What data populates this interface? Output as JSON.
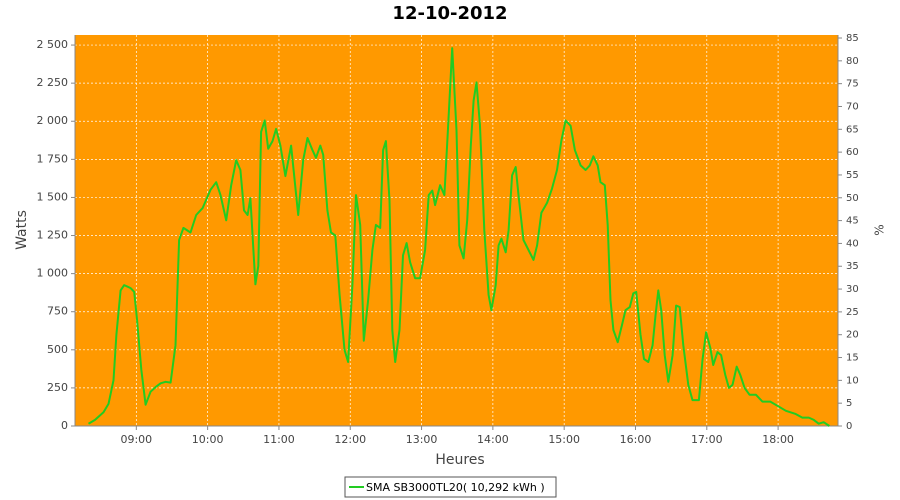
{
  "chart_data": {
    "type": "line",
    "title": "12-10-2012",
    "xlabel": "Heures",
    "ylabel": "Watts",
    "y2label": "%",
    "x": [
      8.33,
      8.42,
      8.54,
      8.61,
      8.68,
      8.72,
      8.78,
      8.83,
      8.92,
      8.97,
      9.01,
      9.07,
      9.13,
      9.2,
      9.27,
      9.34,
      9.41,
      9.48,
      9.55,
      9.6,
      9.66,
      9.76,
      9.84,
      9.93,
      10.04,
      10.12,
      10.18,
      10.26,
      10.33,
      10.4,
      10.46,
      10.51,
      10.56,
      10.6,
      10.67,
      10.71,
      10.75,
      10.8,
      10.85,
      10.91,
      10.96,
      11.02,
      11.09,
      11.17,
      11.27,
      11.34,
      11.4,
      11.47,
      11.52,
      11.58,
      11.62,
      11.68,
      11.73,
      11.79,
      11.85,
      11.92,
      11.97,
      12.03,
      12.08,
      12.14,
      12.19,
      12.25,
      12.31,
      12.36,
      12.42,
      12.46,
      12.5,
      12.55,
      12.59,
      12.63,
      12.69,
      12.74,
      12.79,
      12.84,
      12.91,
      12.98,
      13.05,
      13.1,
      13.15,
      13.19,
      13.26,
      13.32,
      13.37,
      13.43,
      13.49,
      13.53,
      13.59,
      13.64,
      13.69,
      13.73,
      13.77,
      13.82,
      13.88,
      13.94,
      13.98,
      14.04,
      14.08,
      14.12,
      14.18,
      14.22,
      14.27,
      14.32,
      14.36,
      14.43,
      14.5,
      14.57,
      14.62,
      14.68,
      14.76,
      14.83,
      14.9,
      14.96,
      15.02,
      15.09,
      15.15,
      15.23,
      15.3,
      15.36,
      15.41,
      15.47,
      15.51,
      15.57,
      15.61,
      15.65,
      15.69,
      15.75,
      15.81,
      15.86,
      15.92,
      15.97,
      16.01,
      16.07,
      16.12,
      16.18,
      16.24,
      16.28,
      16.32,
      16.36,
      16.41,
      16.46,
      16.52,
      16.57,
      16.62,
      16.67,
      16.74,
      16.8,
      16.89,
      16.94,
      16.99,
      17.05,
      17.09,
      17.15,
      17.2,
      17.26,
      17.31,
      17.36,
      17.42,
      17.47,
      17.53,
      17.6,
      17.69,
      17.78,
      17.89,
      18.0,
      18.11,
      18.24,
      18.34,
      18.43,
      18.5,
      18.57,
      18.64,
      18.72
    ],
    "series": [
      {
        "name": "SMA SB3000TL20( 10,292 kWh )",
        "color": "#22cc22",
        "values": [
          15,
          40,
          90,
          145,
          300,
          600,
          890,
          925,
          905,
          880,
          700,
          370,
          140,
          225,
          255,
          280,
          290,
          285,
          530,
          1220,
          1300,
          1270,
          1385,
          1430,
          1550,
          1600,
          1515,
          1350,
          1580,
          1745,
          1680,
          1415,
          1385,
          1495,
          930,
          1050,
          1930,
          2005,
          1820,
          1870,
          1950,
          1840,
          1640,
          1840,
          1385,
          1745,
          1890,
          1810,
          1760,
          1840,
          1780,
          1415,
          1270,
          1250,
          860,
          500,
          420,
          925,
          1515,
          1320,
          560,
          825,
          1155,
          1320,
          1300,
          1810,
          1870,
          1480,
          630,
          420,
          630,
          1120,
          1200,
          1075,
          970,
          970,
          1155,
          1515,
          1545,
          1450,
          1580,
          1515,
          1940,
          2480,
          1940,
          1185,
          1100,
          1350,
          1840,
          2135,
          2255,
          1970,
          1285,
          860,
          760,
          925,
          1185,
          1230,
          1140,
          1285,
          1645,
          1700,
          1515,
          1220,
          1155,
          1090,
          1185,
          1400,
          1465,
          1560,
          1680,
          1870,
          2005,
          1970,
          1810,
          1710,
          1680,
          1710,
          1770,
          1710,
          1600,
          1580,
          1320,
          825,
          630,
          550,
          660,
          760,
          780,
          870,
          880,
          600,
          440,
          420,
          530,
          725,
          890,
          760,
          465,
          290,
          465,
          790,
          780,
          530,
          270,
          170,
          170,
          435,
          615,
          510,
          400,
          485,
          465,
          335,
          250,
          270,
          390,
          335,
          250,
          205,
          205,
          160,
          160,
          130,
          100,
          80,
          55,
          55,
          40,
          15,
          25,
          0
        ]
      }
    ],
    "xlim": [
      8.14,
      18.84
    ],
    "xticks": [
      {
        "value": 9,
        "label": "09:00"
      },
      {
        "value": 10,
        "label": "10:00"
      },
      {
        "value": 11,
        "label": "11:00"
      },
      {
        "value": 12,
        "label": "12:00"
      },
      {
        "value": 13,
        "label": "13:00"
      },
      {
        "value": 14,
        "label": "14:00"
      },
      {
        "value": 15,
        "label": "15:00"
      },
      {
        "value": 16,
        "label": "16:00"
      },
      {
        "value": 17,
        "label": "17:00"
      },
      {
        "value": 18,
        "label": "18:00"
      }
    ],
    "ylim": [
      0,
      2566
    ],
    "yticks": [
      0,
      250,
      500,
      750,
      {
        "value": 1000,
        "label": "1 000"
      },
      {
        "value": 1250,
        "label": "1 250"
      },
      {
        "value": 1500,
        "label": "1 500"
      },
      {
        "value": 1750,
        "label": "1 750"
      },
      {
        "value": 2000,
        "label": "2 000"
      },
      {
        "value": 2250,
        "label": "2 250"
      },
      {
        "value": 2500,
        "label": "2 500"
      }
    ],
    "y2lim": [
      0,
      85.66
    ],
    "y2ticks": [
      0,
      5,
      10,
      15,
      20,
      25,
      30,
      35,
      40,
      45,
      50,
      55,
      60,
      65,
      70,
      75,
      80,
      85
    ],
    "grid": true,
    "background": "#ff9900",
    "legend": "bottom"
  }
}
